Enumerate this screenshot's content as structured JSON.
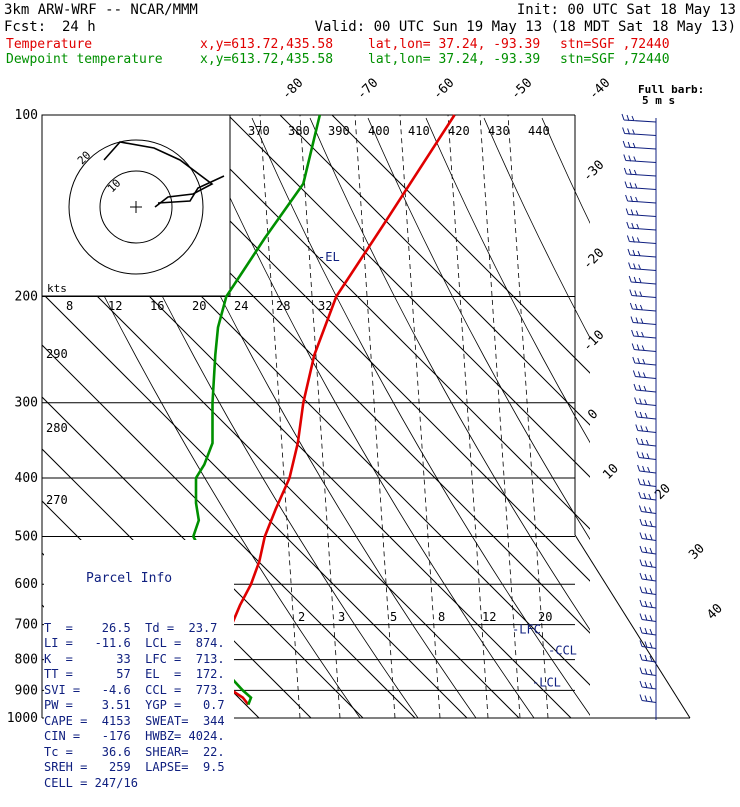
{
  "header": {
    "model": "3km ARW-WRF -- NCAR/MMM",
    "init": "Init: 00 UTC Sat 18 May 13",
    "fcst_label": "Fcst:",
    "fcst_value": "24 h",
    "valid": "Valid: 00 UTC Sun 19 May 13 (18 MDT Sat 18 May 13)",
    "temp_label": "Temperature",
    "dew_label": "Dewpoint temperature",
    "xy": "x,y=613.72,435.58",
    "latlon": "lat,lon= 37.24, -93.39",
    "stn": "stn=SGF ,72440"
  },
  "chart_data": {
    "type": "line",
    "title": "",
    "ylabel": "",
    "xlabel": "",
    "pressure_levels": [
      100,
      200,
      300,
      400,
      500,
      600,
      700,
      800,
      900,
      1000
    ],
    "isotherm_labels": [
      -80,
      -70,
      -60,
      -50,
      -40,
      -30,
      -20,
      -10,
      0,
      10,
      20,
      30,
      40
    ],
    "theta_labels": [
      370,
      380,
      390,
      400,
      410,
      420,
      430,
      440
    ],
    "theta_left_labels": [
      290,
      280,
      270
    ],
    "hodo_speed_labels": [
      8,
      12,
      16,
      20,
      24,
      28,
      32
    ],
    "hodo_rings": [
      "20",
      "10"
    ],
    "hodo_units": "kts",
    "mixing_ratio_labels": [
      2,
      3,
      5,
      8,
      12,
      20
    ],
    "barb_legend": "Full barb:",
    "barb_legend_units": "5 m s",
    "series": [
      {
        "name": "Temperature",
        "color": "#e00000",
        "points": [
          [
            100,
            400
          ],
          [
            150,
            375
          ],
          [
            200,
            357
          ],
          [
            250,
            349
          ],
          [
            300,
            345
          ],
          [
            350,
            343
          ],
          [
            400,
            340
          ],
          [
            450,
            335
          ],
          [
            500,
            331
          ],
          [
            550,
            329
          ],
          [
            600,
            326
          ],
          [
            650,
            322
          ],
          [
            700,
            319
          ],
          [
            750,
            318
          ],
          [
            800,
            318
          ],
          [
            850,
            316
          ],
          [
            900,
            319
          ],
          [
            925,
            323
          ],
          [
            950,
            325
          ]
        ]
      },
      {
        "name": "Dewpoint temperature",
        "color": "#009000",
        "points": [
          [
            100,
            351
          ],
          [
            130,
            345
          ],
          [
            160,
            331
          ],
          [
            200,
            317
          ],
          [
            225,
            314
          ],
          [
            250,
            313
          ],
          [
            300,
            312
          ],
          [
            350,
            312
          ],
          [
            380,
            309
          ],
          [
            400,
            306
          ],
          [
            440,
            306
          ],
          [
            470,
            307
          ],
          [
            500,
            305
          ],
          [
            540,
            309
          ],
          [
            570,
            311
          ],
          [
            600,
            313
          ],
          [
            650,
            317
          ],
          [
            680,
            315
          ],
          [
            700,
            312
          ],
          [
            750,
            312
          ],
          [
            800,
            314
          ],
          [
            850,
            318
          ],
          [
            900,
            323
          ],
          [
            925,
            326
          ],
          [
            950,
            325
          ]
        ]
      }
    ],
    "markers": [
      {
        "label": "-EL",
        "pressure": 172
      },
      {
        "label": "-LFC",
        "pressure": 713
      },
      {
        "label": "-CCL",
        "pressure": 773
      },
      {
        "label": "-LCL",
        "pressure": 874
      }
    ]
  },
  "parcel": {
    "title": "Parcel Info",
    "rows": [
      "T  =    26.5  Td =  23.7",
      "LI =   -11.6  LCL =  874.",
      "K  =      33  LFC =  713.",
      "TT =      57  EL  =  172.",
      "SVI =   -4.6  CCL =  773.",
      "PW =    3.51  YGP =   0.7",
      "CAPE =  4153  SWEAT=  344",
      "CIN =   -176  HWBZ= 4024.",
      "Tc =    36.6  SHEAR=  22.",
      "SREH =   259  LAPSE=  9.5",
      "CELL = 247/16"
    ]
  }
}
